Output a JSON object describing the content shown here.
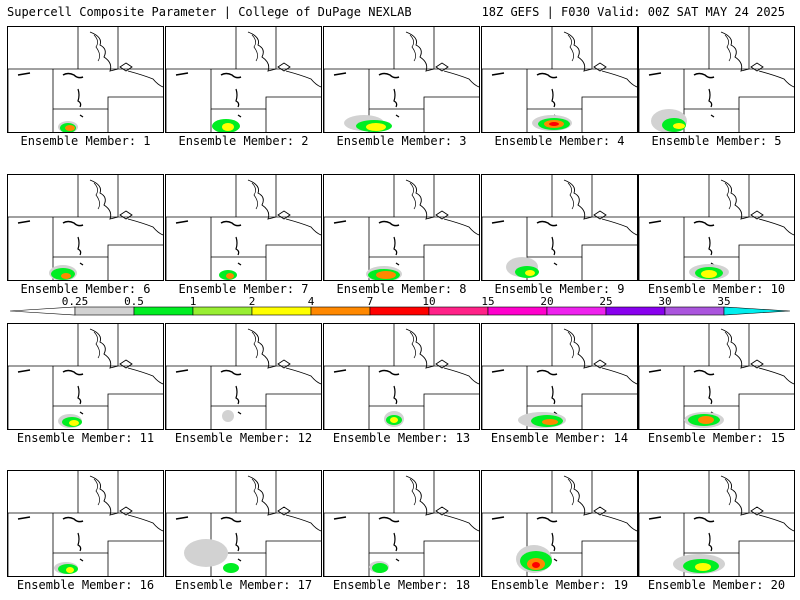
{
  "header": {
    "left": "Supercell Composite Parameter | College of DuPage NEXLAB",
    "right": "18Z GEFS | F030 Valid: 00Z SAT MAY 24 2025"
  },
  "members": [
    {
      "label": "Ensemble Member: 1"
    },
    {
      "label": "Ensemble Member: 2"
    },
    {
      "label": "Ensemble Member: 3"
    },
    {
      "label": "Ensemble Member: 4"
    },
    {
      "label": "Ensemble Member: 5"
    },
    {
      "label": "Ensemble Member: 6"
    },
    {
      "label": "Ensemble Member: 7"
    },
    {
      "label": "Ensemble Member: 8"
    },
    {
      "label": "Ensemble Member: 9"
    },
    {
      "label": "Ensemble Member: 10"
    },
    {
      "label": "Ensemble Member: 11"
    },
    {
      "label": "Ensemble Member: 12"
    },
    {
      "label": "Ensemble Member: 13"
    },
    {
      "label": "Ensemble Member: 14"
    },
    {
      "label": "Ensemble Member: 15"
    },
    {
      "label": "Ensemble Member: 16"
    },
    {
      "label": "Ensemble Member: 17"
    },
    {
      "label": "Ensemble Member: 18"
    },
    {
      "label": "Ensemble Member: 19"
    },
    {
      "label": "Ensemble Member: 20"
    }
  ],
  "colorbar": {
    "ticks": [
      "0.25",
      "0.5",
      "1",
      "2",
      "4",
      "7",
      "10",
      "15",
      "20",
      "25",
      "30",
      "35"
    ],
    "colors": [
      "#d2d2d2",
      "#00ee22",
      "#99ee33",
      "#ffff00",
      "#ff8800",
      "#ff0000",
      "#ff2288",
      "#ff00cc",
      "#ee22ee",
      "#8800ee",
      "#aa55dd",
      "#00eeee"
    ]
  }
}
